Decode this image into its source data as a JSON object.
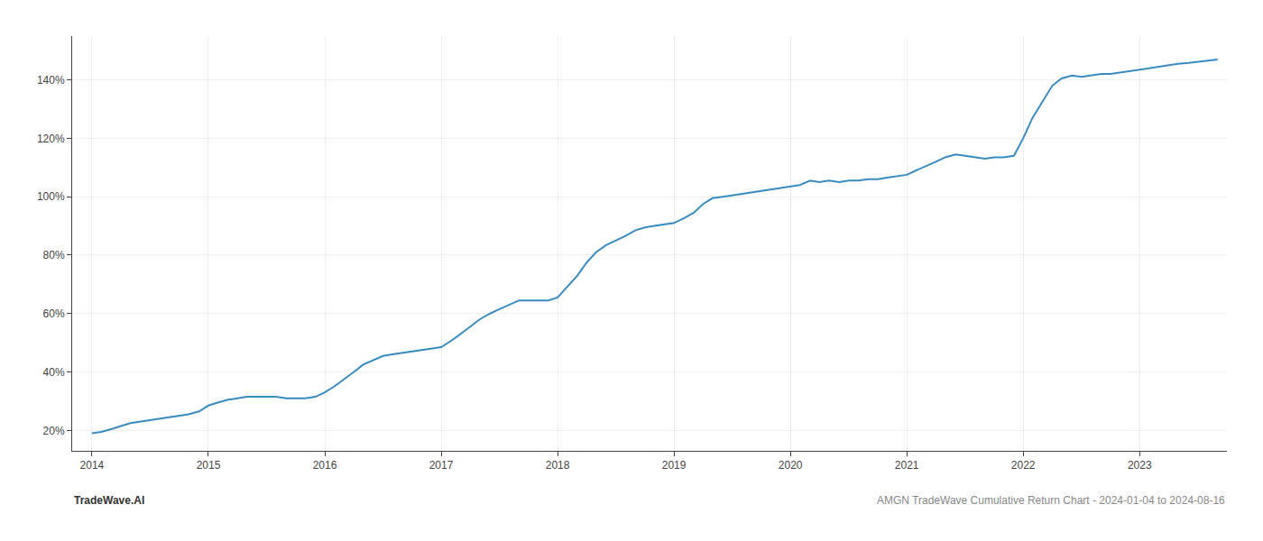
{
  "chart_data": {
    "type": "line",
    "color": "#3a8bbf",
    "grid": true,
    "annotations": [
      "TradeWave.AI",
      "AMGN TradeWave Cumulative Return Chart - 2024-01-04 to 2024-08-16"
    ],
    "x": [
      2014.0,
      2014.08,
      2014.17,
      2014.25,
      2014.33,
      2014.42,
      2014.5,
      2014.58,
      2014.67,
      2014.75,
      2014.83,
      2014.92,
      2015.0,
      2015.08,
      2015.17,
      2015.25,
      2015.33,
      2015.42,
      2015.5,
      2015.58,
      2015.67,
      2015.75,
      2015.83,
      2015.92,
      2016.0,
      2016.08,
      2016.17,
      2016.25,
      2016.33,
      2016.42,
      2016.5,
      2016.58,
      2016.67,
      2016.75,
      2016.83,
      2016.92,
      2017.0,
      2017.08,
      2017.17,
      2017.25,
      2017.33,
      2017.42,
      2017.5,
      2017.58,
      2017.67,
      2017.75,
      2017.83,
      2017.92,
      2018.0,
      2018.08,
      2018.17,
      2018.25,
      2018.33,
      2018.42,
      2018.5,
      2018.58,
      2018.67,
      2018.75,
      2018.83,
      2018.92,
      2019.0,
      2019.08,
      2019.17,
      2019.25,
      2019.33,
      2019.42,
      2019.5,
      2019.58,
      2019.67,
      2019.75,
      2019.83,
      2019.92,
      2020.0,
      2020.08,
      2020.17,
      2020.25,
      2020.33,
      2020.42,
      2020.5,
      2020.58,
      2020.67,
      2020.75,
      2020.83,
      2020.92,
      2021.0,
      2021.08,
      2021.17,
      2021.25,
      2021.33,
      2021.42,
      2021.5,
      2021.58,
      2021.67,
      2021.75,
      2021.83,
      2021.92,
      2022.0,
      2022.08,
      2022.17,
      2022.25,
      2022.33,
      2022.42,
      2022.5,
      2022.58,
      2022.67,
      2022.75,
      2022.83,
      2022.92,
      2023.0,
      2023.08,
      2023.17,
      2023.25,
      2023.33,
      2023.42,
      2023.5,
      2023.58,
      2023.67
    ],
    "values": [
      19.0,
      19.5,
      20.5,
      21.5,
      22.5,
      23.0,
      23.5,
      24.0,
      24.5,
      25.0,
      25.5,
      26.5,
      28.5,
      29.5,
      30.5,
      31.0,
      31.5,
      31.5,
      31.5,
      31.5,
      31.0,
      31.0,
      31.0,
      31.5,
      33.0,
      35.0,
      37.5,
      40.0,
      42.5,
      44.0,
      45.5,
      46.0,
      46.5,
      47.0,
      47.5,
      48.0,
      48.5,
      50.5,
      53.0,
      55.5,
      58.0,
      60.0,
      61.5,
      63.0,
      64.5,
      64.5,
      64.5,
      64.5,
      65.5,
      69.0,
      73.0,
      77.5,
      81.0,
      83.5,
      85.0,
      86.5,
      88.5,
      89.5,
      90.0,
      90.5,
      91.0,
      92.5,
      94.5,
      97.5,
      99.5,
      100.0,
      100.5,
      101.0,
      101.5,
      102.0,
      102.5,
      103.0,
      103.5,
      104.0,
      105.5,
      105.0,
      105.5,
      105.0,
      105.5,
      105.5,
      106.0,
      106.0,
      106.5,
      107.0,
      107.5,
      109.0,
      110.5,
      112.0,
      113.5,
      114.5,
      114.0,
      113.5,
      113.0,
      113.5,
      113.5,
      114.0,
      120.0,
      127.0,
      133.0,
      138.0,
      140.5,
      141.5,
      141.0,
      141.5,
      142.0,
      142.0,
      142.5,
      143.0,
      143.5,
      144.0,
      144.5,
      145.0,
      145.5,
      145.8,
      146.2,
      146.5,
      147.0
    ],
    "xlim": [
      2013.83,
      2023.75
    ],
    "xticks": [
      2014,
      2015,
      2016,
      2017,
      2018,
      2019,
      2020,
      2021,
      2022,
      2023
    ],
    "ylim": [
      13,
      155
    ],
    "yticks": [
      {
        "value": 20,
        "label": "20%"
      },
      {
        "value": 40,
        "label": "40%"
      },
      {
        "value": 60,
        "label": "60%"
      },
      {
        "value": 80,
        "label": "80%"
      },
      {
        "value": 100,
        "label": "100%"
      },
      {
        "value": 120,
        "label": "120%"
      },
      {
        "value": 140,
        "label": "140%"
      }
    ]
  }
}
